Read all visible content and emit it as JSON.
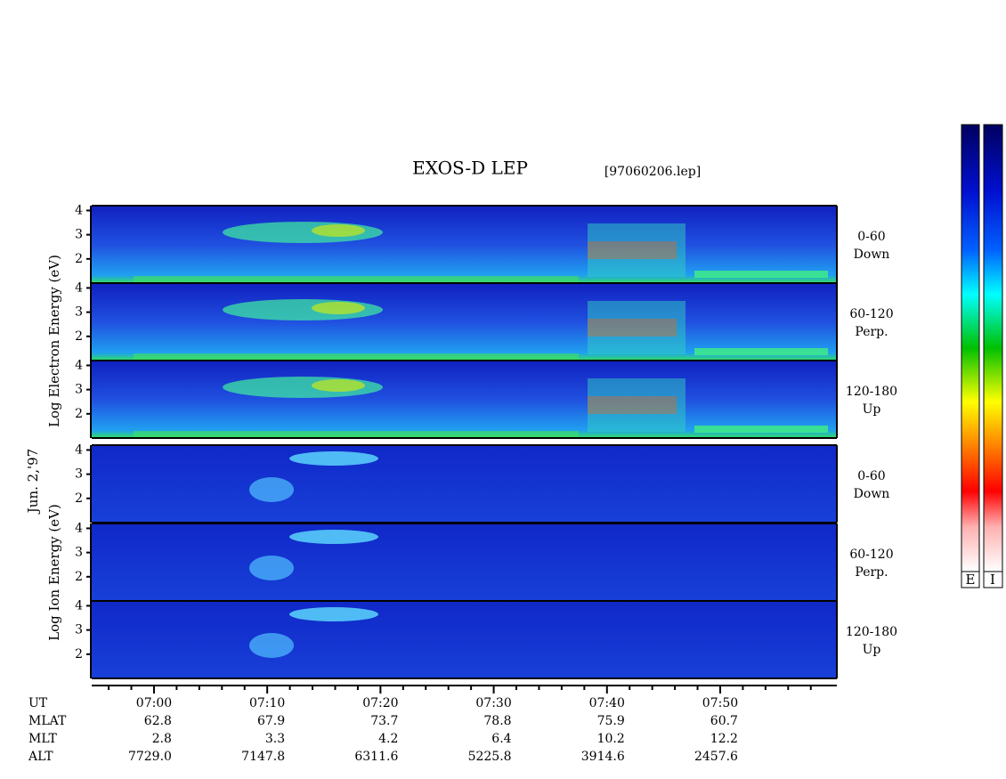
{
  "chart_data": {
    "type": "spectrogram",
    "title": "EXOS-D LEP",
    "file": "[97060206.lep]",
    "date": "Jun. 2,'97",
    "ylim": [
      1,
      4.2
    ],
    "yticks": [
      2,
      3,
      4
    ],
    "xlim": [
      414.5,
      480.3
    ],
    "xticks": [
      {
        "value": 420,
        "label": "07:00"
      },
      {
        "value": 430,
        "label": "07:10"
      },
      {
        "value": 440,
        "label": "07:20"
      },
      {
        "value": 450,
        "label": "07:30"
      },
      {
        "value": 460,
        "label": "07:40"
      },
      {
        "value": 470,
        "label": "07:50"
      }
    ],
    "xminorticks": [
      416,
      418,
      422,
      424,
      426,
      428,
      432,
      434,
      436,
      438,
      442,
      444,
      446,
      448,
      452,
      454,
      456,
      458,
      462,
      464,
      466,
      468,
      472,
      474,
      476,
      478
    ],
    "groups": [
      {
        "axis_label": "Log Electron Energy (eV)",
        "panels": [
          {
            "range": "0-60",
            "direction": "Down"
          },
          {
            "range": "60-120",
            "direction": "Perp."
          },
          {
            "range": "120-180",
            "direction": "Up"
          }
        ]
      },
      {
        "axis_label": "Log Ion Energy (eV)",
        "panels": [
          {
            "range": "0-60",
            "direction": "Down"
          },
          {
            "range": "60-120",
            "direction": "Perp."
          },
          {
            "range": "120-180",
            "direction": "Up"
          }
        ]
      }
    ],
    "table": {
      "rows": [
        {
          "label": "UT"
        },
        {
          "label": "MLAT",
          "values": [
            "62.8",
            "67.9",
            "73.7",
            "78.8",
            "75.9",
            "60.7"
          ]
        },
        {
          "label": "MLT",
          "values": [
            "2.8",
            "3.3",
            "4.2",
            "6.4",
            "10.2",
            "12.2"
          ]
        },
        {
          "label": "ALT",
          "values": [
            "7729.0",
            "7147.8",
            "6311.6",
            "5225.8",
            "3914.6",
            "2457.6"
          ]
        }
      ]
    },
    "colorbar_labels": [
      "E",
      "I"
    ]
  }
}
